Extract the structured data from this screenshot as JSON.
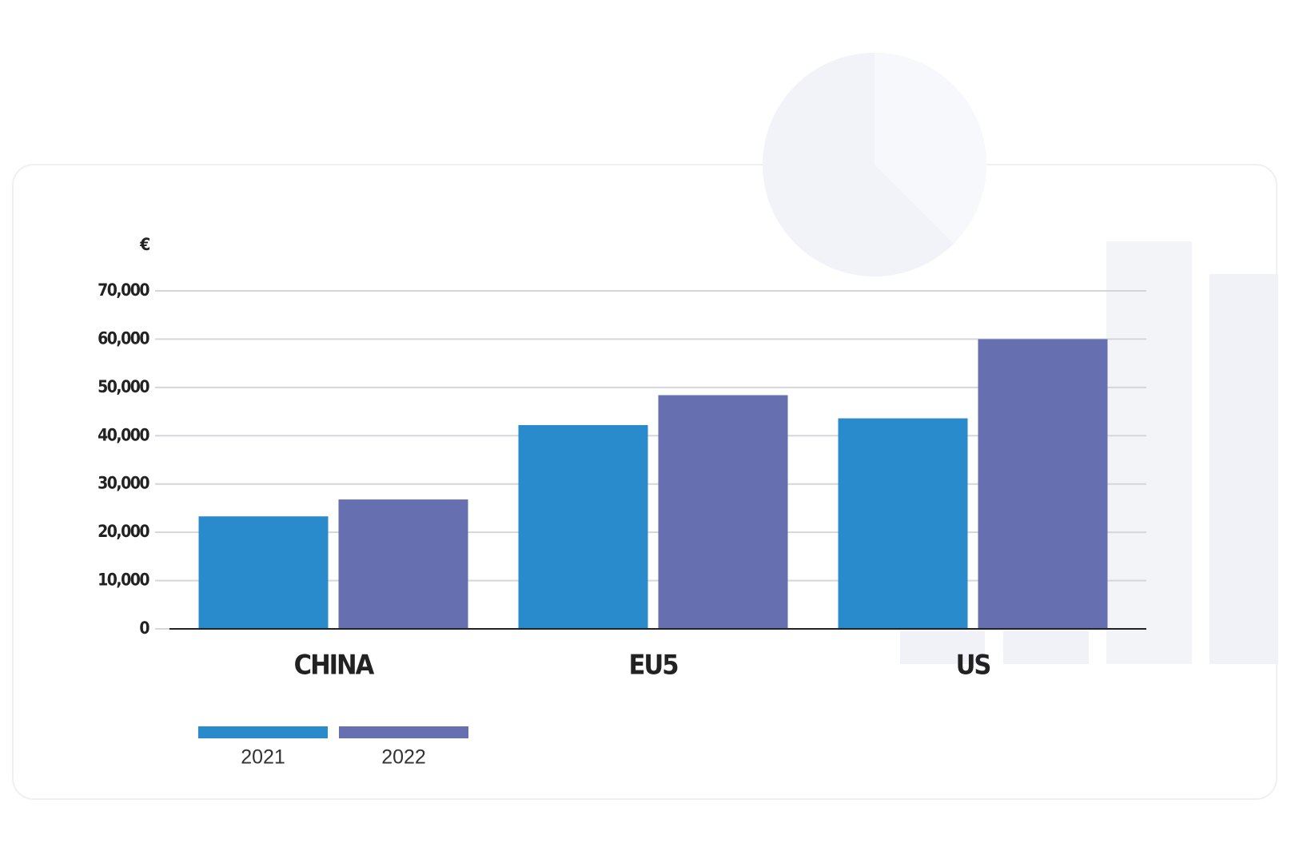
{
  "chart_data": {
    "type": "bar",
    "y_label": "€",
    "categories": [
      "CHINA",
      "EU5",
      "US"
    ],
    "series": [
      {
        "name": "2021",
        "color": "#2a8bcc",
        "values": [
          23300,
          42200,
          43600
        ]
      },
      {
        "name": "2022",
        "color": "#666fb0",
        "values": [
          26800,
          48400,
          60000
        ]
      }
    ],
    "ylim": [
      0,
      70000
    ],
    "yticks": [
      0,
      {
        "value": 10000,
        "label": "10,000"
      },
      {
        "value": 20000,
        "label": "20,000"
      },
      {
        "value": 30000,
        "label": "30,000"
      },
      {
        "value": 40000,
        "label": "40,000"
      },
      {
        "value": 50000,
        "label": "50,000"
      },
      {
        "value": 60000,
        "label": "60,000"
      },
      {
        "value": 70000,
        "label": "70,000"
      }
    ],
    "grid": true
  }
}
